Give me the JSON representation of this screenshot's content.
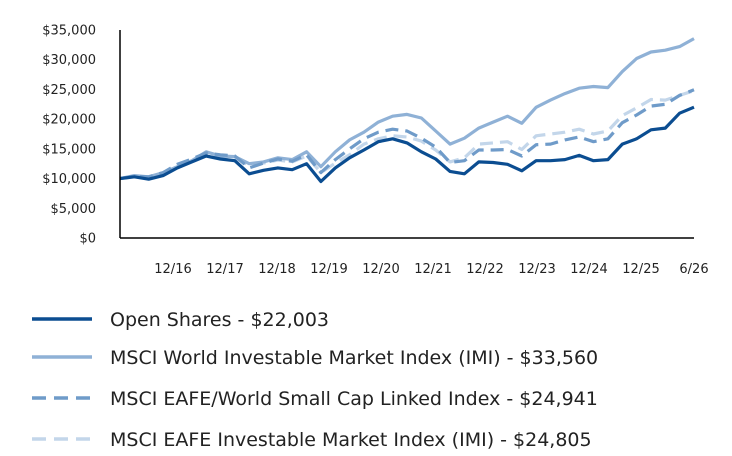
{
  "chart_data": {
    "type": "line",
    "title": "",
    "xlabel": "",
    "ylabel": "",
    "ylim": [
      0,
      35000
    ],
    "yticks": [
      "$0",
      "$5,000",
      "$10,000",
      "$15,000",
      "$20,000",
      "$25,000",
      "$30,000",
      "$35,000"
    ],
    "xticks": [
      "12/16",
      "12/17",
      "12/18",
      "12/19",
      "12/20",
      "12/21",
      "12/22",
      "12/23",
      "12/24",
      "12/25",
      "6/26"
    ],
    "x": [
      2016.5,
      2016.75,
      2017.0,
      2017.25,
      2017.5,
      2017.75,
      2018.0,
      2018.25,
      2018.5,
      2018.75,
      2019.0,
      2019.25,
      2019.5,
      2019.75,
      2020.0,
      2020.25,
      2020.5,
      2020.75,
      2021.0,
      2021.25,
      2021.5,
      2021.75,
      2022.0,
      2022.25,
      2022.5,
      2022.75,
      2023.0,
      2023.25,
      2023.5,
      2023.75,
      2024.0,
      2024.25,
      2024.5,
      2024.75,
      2025.0,
      2025.25,
      2025.5,
      2025.75,
      2026.0,
      2026.25,
      2026.5
    ],
    "grid": false,
    "legend_position": "bottom",
    "series": [
      {
        "name": "Open Shares - $22,003",
        "color": "#0b4d91",
        "style": "solid",
        "values": [
          10000,
          10300,
          9900,
          10500,
          11800,
          12800,
          13800,
          13300,
          13000,
          10800,
          11400,
          11800,
          11500,
          12500,
          9500,
          11800,
          13500,
          14800,
          16200,
          16700,
          16000,
          14500,
          13300,
          11200,
          10800,
          12800,
          12700,
          12400,
          11300,
          13000,
          13000,
          13200,
          13900,
          13000,
          13200,
          15800,
          16700,
          18200,
          18500,
          21000,
          22003
        ]
      },
      {
        "name": "MSCI World Investable Market Index (IMI) - $33,560",
        "color": "#8fb1d6",
        "style": "solid",
        "values": [
          10000,
          10500,
          10300,
          11000,
          12000,
          13000,
          14500,
          13800,
          13700,
          12500,
          12800,
          13500,
          13200,
          14500,
          12000,
          14500,
          16500,
          17800,
          19500,
          20500,
          20800,
          20200,
          18000,
          15800,
          16800,
          18500,
          19500,
          20500,
          19300,
          22000,
          23200,
          24300,
          25200,
          25500,
          25300,
          28000,
          30200,
          31300,
          31600,
          32200,
          33560
        ]
      },
      {
        "name": "MSCI EAFE/World Small Cap Linked Index - $24,941",
        "color": "#6f9bc9",
        "style": "dashed",
        "values": [
          10000,
          10400,
          10300,
          11000,
          12400,
          13300,
          14300,
          14000,
          13800,
          11800,
          12600,
          13300,
          12900,
          14000,
          11000,
          13200,
          15000,
          16700,
          17800,
          18300,
          18000,
          16800,
          15300,
          12700,
          13000,
          14800,
          14800,
          14900,
          13800,
          15700,
          15800,
          16500,
          17000,
          16200,
          16700,
          19400,
          20700,
          22200,
          22500,
          24000,
          24941
        ]
      },
      {
        "name": "MSCI EAFE Investable Market Index (IMI) - $24,805",
        "color": "#c3d6ea",
        "style": "dashed",
        "values": [
          10000,
          10400,
          10200,
          10900,
          12300,
          13100,
          14100,
          13800,
          13500,
          12200,
          12600,
          13100,
          12800,
          13800,
          11000,
          12600,
          14000,
          15800,
          16700,
          17200,
          17000,
          16300,
          14800,
          12800,
          13500,
          15800,
          16000,
          16200,
          14900,
          17200,
          17500,
          17800,
          18300,
          17500,
          18000,
          20600,
          21900,
          23300,
          23200,
          24000,
          24805
        ]
      }
    ]
  }
}
